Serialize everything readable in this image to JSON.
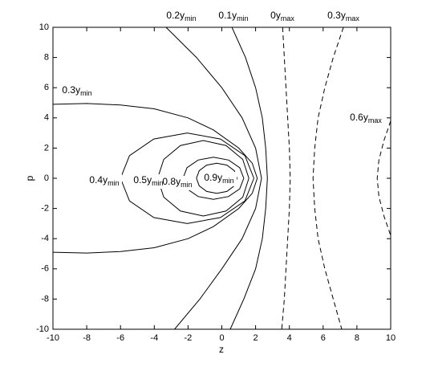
{
  "chart_data": {
    "type": "contour",
    "xlabel": "z",
    "ylabel": "p",
    "xlim": [
      -10,
      10
    ],
    "ylim": [
      -10,
      10
    ],
    "xticks": [
      -10,
      -8,
      -6,
      -4,
      -2,
      0,
      2,
      4,
      6,
      8,
      10
    ],
    "yticks": [
      -10,
      -8,
      -6,
      -4,
      -2,
      0,
      2,
      4,
      6,
      8,
      10
    ],
    "series": [
      {
        "label": "0.2y",
        "label_sub": "min",
        "color": "#000000",
        "line_style": "solid",
        "x": [
          -3.3,
          -1.5,
          0,
          1.2,
          2.0,
          2.35,
          2.0,
          1.2,
          0,
          -1.3,
          -2.8
        ],
        "y": [
          10,
          8,
          6,
          4,
          2,
          0,
          -2,
          -4,
          -6,
          -8,
          -10
        ]
      },
      {
        "label": "0.1y",
        "label_sub": "min",
        "color": "#000000",
        "line_style": "solid",
        "x": [
          0.6,
          1.4,
          2.0,
          2.4,
          2.6,
          2.7,
          2.6,
          2.4,
          2.0,
          1.3,
          0.5
        ],
        "y": [
          10,
          8,
          6,
          4,
          2,
          0,
          -2,
          -4,
          -6,
          -8,
          -10
        ]
      },
      {
        "label": "0y",
        "label_sub": "max",
        "color": "#000000",
        "line_style": "dashed",
        "x": [
          3.6,
          3.7,
          3.8,
          3.9,
          4.0,
          4.05,
          4.0,
          3.9,
          3.8,
          3.7,
          3.55
        ],
        "y": [
          10,
          8,
          6,
          4,
          2,
          0,
          -2,
          -4,
          -6,
          -8,
          -10
        ]
      },
      {
        "label": "0.3y",
        "label_sub": "max",
        "color": "#000000",
        "line_style": "dashed",
        "x": [
          7.2,
          6.6,
          6.1,
          5.7,
          5.5,
          5.4,
          5.5,
          5.7,
          6.1,
          6.6,
          7.1
        ],
        "y": [
          10,
          8,
          6,
          4,
          2,
          0,
          -2,
          -4,
          -6,
          -8,
          -10
        ]
      },
      {
        "label": "0.3y",
        "label_sub": "min",
        "color": "#000000",
        "line_style": "solid",
        "x": [
          -10,
          -8,
          -6,
          -4,
          -2,
          -0.5,
          1,
          1.8,
          2.1,
          1.8,
          1,
          -0.5,
          -2,
          -4,
          -6,
          -8,
          -10
        ],
        "y": [
          4.9,
          4.95,
          4.85,
          4.6,
          4.0,
          3.2,
          2.0,
          1.0,
          0,
          -1,
          -2,
          -3.2,
          -4,
          -4.6,
          -4.85,
          -4.95,
          -4.9
        ]
      },
      {
        "label": "0.6y",
        "label_sub": "max",
        "color": "#000000",
        "line_style": "dashed",
        "x": [
          10,
          9.6,
          9.3,
          9.2,
          9.3,
          9.6,
          10
        ],
        "y": [
          3.8,
          2.5,
          1.2,
          0,
          -1.2,
          -2.5,
          -3.8
        ]
      },
      {
        "label": "0.4y",
        "label_sub": "min",
        "color": "#000000",
        "line_style": "solid",
        "x": [
          1.9,
          1.37,
          -0.08,
          -2.05,
          -4.03,
          -5.47,
          -6,
          -5.47,
          -4.03,
          -2.05,
          -0.08,
          1.37,
          1.9
        ],
        "y": [
          0,
          1.5,
          2.6,
          3,
          2.6,
          1.5,
          0,
          -1.5,
          -2.6,
          -3,
          -2.6,
          -1.5,
          0
        ]
      },
      {
        "label": "0.5y",
        "label_sub": "min",
        "color": "#000000",
        "line_style": "solid",
        "x": [
          1.6,
          1.24,
          0.25,
          -1.1,
          -2.45,
          -3.44,
          -3.8,
          -3.44,
          -2.45,
          -1.1,
          0.25,
          1.24,
          1.6
        ],
        "y": [
          0,
          1.25,
          2.17,
          2.5,
          2.17,
          1.25,
          0,
          -1.25,
          -2.17,
          -2.5,
          -2.17,
          -1.25,
          0
        ]
      },
      {
        "label": "0.8y",
        "label_sub": "min",
        "color": "#000000",
        "line_style": "solid",
        "x": [
          1.3,
          1.06,
          0.4,
          -0.5,
          -1.4,
          -2.06,
          -2.3,
          -2.06,
          -1.4,
          -0.5,
          0.4,
          1.06,
          1.3
        ],
        "y": [
          0,
          0.7,
          1.21,
          1.4,
          1.21,
          0.7,
          0,
          -0.7,
          -1.21,
          -1.4,
          -1.21,
          -0.7,
          0
        ]
      },
      {
        "label": "0.9y",
        "label_sub": "min",
        "color": "#000000",
        "line_style": "solid",
        "x": [
          0.9,
          0.74,
          0.3,
          -0.3,
          -0.9,
          -1.34,
          -1.5,
          -1.34,
          -0.9,
          -0.3,
          0.3,
          0.74,
          0.9
        ],
        "y": [
          0,
          0.5,
          0.87,
          1,
          0.87,
          0.5,
          0,
          -0.5,
          -0.87,
          -1,
          -0.87,
          -0.5,
          0
        ]
      }
    ]
  }
}
